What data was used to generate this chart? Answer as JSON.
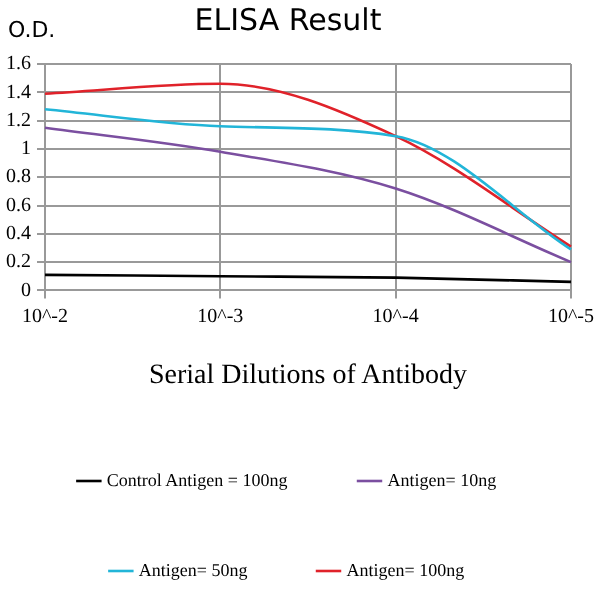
{
  "chart_data": {
    "type": "line",
    "title": "ELISA Result",
    "ylabel": "O.D.",
    "xlabel": "Serial Dilutions of Antibody",
    "categories": [
      "10^-2",
      "10^-3",
      "10^-4",
      "10^-5"
    ],
    "series": [
      {
        "name": "Control Antigen = 100ng",
        "color": "#000000",
        "values": [
          0.11,
          0.1,
          0.09,
          0.06
        ]
      },
      {
        "name": "Antigen= 10ng",
        "color": "#7b4fa0",
        "values": [
          1.15,
          0.98,
          0.72,
          0.2
        ]
      },
      {
        "name": "Antigen= 50ng",
        "color": "#22b5d8",
        "values": [
          1.28,
          1.16,
          1.09,
          0.29
        ]
      },
      {
        "name": "Antigen= 100ng",
        "color": "#e0222a",
        "values": [
          1.39,
          1.46,
          1.09,
          0.31
        ]
      }
    ],
    "ylim": [
      0,
      1.6
    ],
    "yticks": [
      0,
      0.2,
      0.4,
      0.6,
      0.8,
      1,
      1.2,
      1.4,
      1.6
    ],
    "grid": true,
    "legend": "bottom",
    "marker": "none",
    "line_style": "solid"
  }
}
